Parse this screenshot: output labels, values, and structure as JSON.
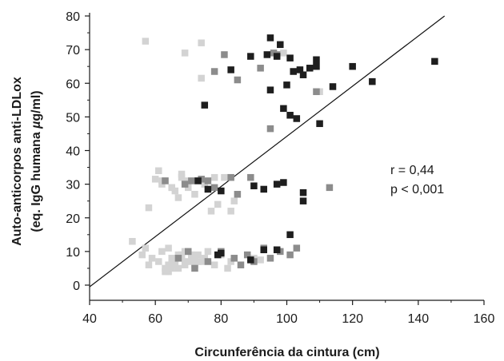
{
  "chart_data": {
    "type": "scatter",
    "xlabel": "Circunferência da cintura (cm)",
    "ylabel_line1": "Auto-anticorpos anti-LDLox",
    "ylabel_line2_prefix": "(eq. IgG humana ",
    "ylabel_line2_mu": "µ",
    "ylabel_line2_suffix": "g/ml)",
    "xlim": [
      40,
      160
    ],
    "ylim": [
      0,
      80
    ],
    "x_ticks": [
      40,
      60,
      80,
      100,
      120,
      140,
      160
    ],
    "y_ticks": [
      0,
      10,
      20,
      30,
      40,
      50,
      60,
      70,
      80
    ],
    "grid": false,
    "annotations": [
      "r = 0,44",
      "p < 0,001"
    ],
    "colors": {
      "light": "#d3d3d3",
      "mid": "#8c8c8c",
      "dark": "#1e1e1e",
      "axis": "#1a1a1a"
    },
    "trendline": {
      "x": [
        40,
        148
      ],
      "y": [
        -0.5,
        80
      ]
    },
    "series": [
      {
        "color": "light",
        "x": [
          57,
          74,
          69,
          74,
          99,
          110,
          53,
          56,
          58,
          57,
          59,
          61,
          62,
          63,
          64,
          64,
          65,
          66,
          67,
          68,
          69,
          70,
          71,
          72,
          73,
          74,
          75,
          76,
          78,
          80,
          82,
          83,
          63,
          64,
          65,
          66,
          67,
          68,
          69,
          70,
          71,
          72,
          73,
          90,
          92,
          60,
          61,
          62,
          63,
          65,
          66,
          67,
          68,
          69,
          70,
          72,
          73,
          75,
          77,
          79,
          81,
          83,
          58,
          62,
          65,
          70,
          74,
          78,
          84,
          68
        ],
        "y": [
          72.5,
          61.5,
          69,
          72,
          69,
          57.5,
          13,
          9,
          6,
          11,
          8,
          7,
          10,
          5,
          4,
          11,
          8,
          6,
          5,
          9,
          10,
          7,
          8,
          6,
          9,
          7,
          8,
          10,
          6,
          9,
          5,
          7,
          4,
          6,
          5,
          7,
          9,
          8,
          6,
          10,
          9,
          8,
          7,
          8,
          7.5,
          31.5,
          34,
          30,
          31,
          29,
          28,
          26,
          32,
          31,
          29,
          27,
          31,
          30,
          22,
          24,
          32,
          22,
          23,
          31,
          29,
          30,
          31,
          32,
          25,
          33
        ]
      },
      {
        "color": "mid",
        "x": [
          78,
          81,
          85,
          92,
          96,
          97,
          95,
          109,
          63,
          69,
          71,
          74,
          76,
          78,
          83,
          85,
          89,
          113,
          67,
          70,
          72,
          76,
          80,
          84,
          86,
          88,
          90,
          93,
          95,
          98,
          101,
          103
        ],
        "y": [
          63.5,
          68.5,
          61,
          64.5,
          69,
          68.5,
          46.5,
          57.5,
          31,
          30,
          31,
          31.5,
          31,
          29,
          32,
          27,
          32,
          29,
          8,
          10,
          5,
          7,
          10,
          8,
          6,
          9,
          7,
          11,
          8,
          10,
          9,
          11
        ]
      },
      {
        "color": "dark",
        "x": [
          95,
          89,
          94,
          95,
          97,
          98,
          100,
          101,
          102,
          104,
          105,
          107,
          109,
          109,
          120,
          145,
          126,
          114,
          83,
          75,
          99,
          101,
          103,
          110,
          73,
          76,
          80,
          90,
          93,
          97,
          99,
          105,
          105,
          79,
          89,
          93,
          97,
          101,
          80
        ],
        "y": [
          73.5,
          68,
          68.5,
          58,
          68,
          71.5,
          59.5,
          67.5,
          63.5,
          64,
          62.5,
          64.5,
          65,
          67,
          65,
          66.5,
          60.5,
          59,
          64,
          53.5,
          52.5,
          50.5,
          49.5,
          48,
          31,
          28.5,
          28,
          29.5,
          28.5,
          30,
          30.5,
          27.5,
          25,
          9,
          7.5,
          10.5,
          10.5,
          15,
          9.5
        ]
      }
    ]
  }
}
